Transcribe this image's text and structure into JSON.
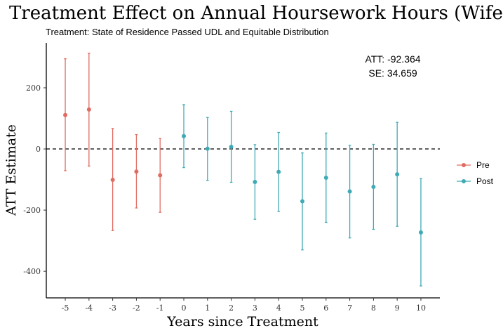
{
  "chart_data": {
    "type": "scatter",
    "title": "Treatment Effect on Annual Hoursework Hours (Wife)",
    "subtitle": "Treatment: State of Residence Passed UDL and Equitable Distribution",
    "xlabel": "Years since Treatment",
    "ylabel": "ATT Estimate",
    "x_ticks": [
      -5,
      -4,
      -3,
      -2,
      -1,
      0,
      1,
      2,
      3,
      4,
      5,
      6,
      7,
      8,
      9,
      10
    ],
    "y_ticks": [
      -400,
      -200,
      0,
      200
    ],
    "xlim": [
      -5.8,
      10.8
    ],
    "ylim": [
      -487,
      347
    ],
    "grid": false,
    "reference_line": {
      "y": 0,
      "style": "dashed"
    },
    "legend_position": "right",
    "annotations": [
      "ATT: -92.364",
      "SE:  34.659"
    ],
    "series": [
      {
        "name": "Pre",
        "color": "#E06C61",
        "points": [
          {
            "x": -5,
            "y": 111,
            "lo": -71,
            "hi": 295
          },
          {
            "x": -4,
            "y": 129,
            "lo": -56,
            "hi": 313
          },
          {
            "x": -3,
            "y": -101,
            "lo": -267,
            "hi": 67
          },
          {
            "x": -2,
            "y": -74,
            "lo": -193,
            "hi": 47
          },
          {
            "x": -1,
            "y": -86,
            "lo": -207,
            "hi": 34
          }
        ]
      },
      {
        "name": "Post",
        "color": "#3FAAB5",
        "points": [
          {
            "x": 0,
            "y": 42,
            "lo": -61,
            "hi": 145
          },
          {
            "x": 1,
            "y": 1,
            "lo": -103,
            "hi": 103
          },
          {
            "x": 2,
            "y": 7,
            "lo": -109,
            "hi": 123
          },
          {
            "x": 3,
            "y": -108,
            "lo": -230,
            "hi": 14
          },
          {
            "x": 4,
            "y": -75,
            "lo": -204,
            "hi": 54
          },
          {
            "x": 5,
            "y": -171,
            "lo": -330,
            "hi": -13
          },
          {
            "x": 6,
            "y": -94,
            "lo": -240,
            "hi": 52
          },
          {
            "x": 7,
            "y": -139,
            "lo": -291,
            "hi": 12
          },
          {
            "x": 8,
            "y": -124,
            "lo": -263,
            "hi": 15
          },
          {
            "x": 9,
            "y": -83,
            "lo": -253,
            "hi": 87
          },
          {
            "x": 10,
            "y": -273,
            "lo": -448,
            "hi": -97
          }
        ]
      }
    ]
  }
}
